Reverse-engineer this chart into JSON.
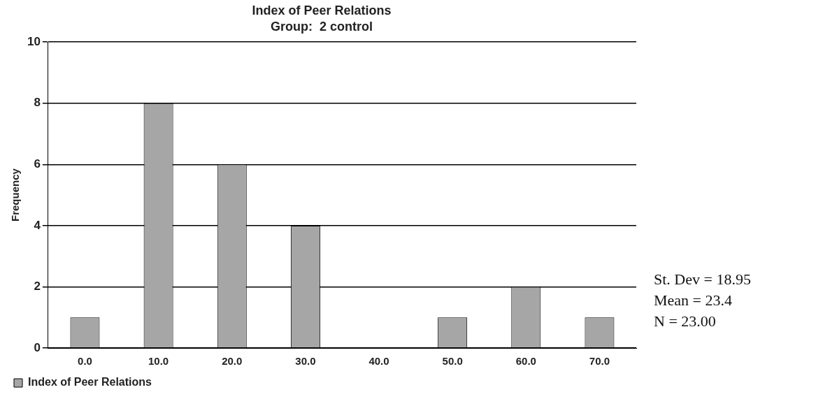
{
  "chart_data": {
    "type": "bar",
    "title": "Index of Peer Relations",
    "subtitle": "Group:  2 control",
    "ylabel": "Frequency",
    "categories": [
      "0.0",
      "10.0",
      "20.0",
      "30.0",
      "40.0",
      "50.0",
      "60.0",
      "70.0"
    ],
    "series": [
      {
        "name": "Index of Peer Relations",
        "color": "#a6a6a6",
        "values": [
          1,
          8,
          6,
          4,
          0,
          1,
          2,
          1
        ]
      }
    ],
    "ylim": [
      0,
      10
    ],
    "yticks": [
      0,
      2,
      4,
      6,
      8,
      10
    ],
    "grid": "y",
    "legend": "bottom",
    "annotations": [
      "St. Dev = 18.95",
      "Mean = 23.4",
      "N = 23.00"
    ]
  }
}
